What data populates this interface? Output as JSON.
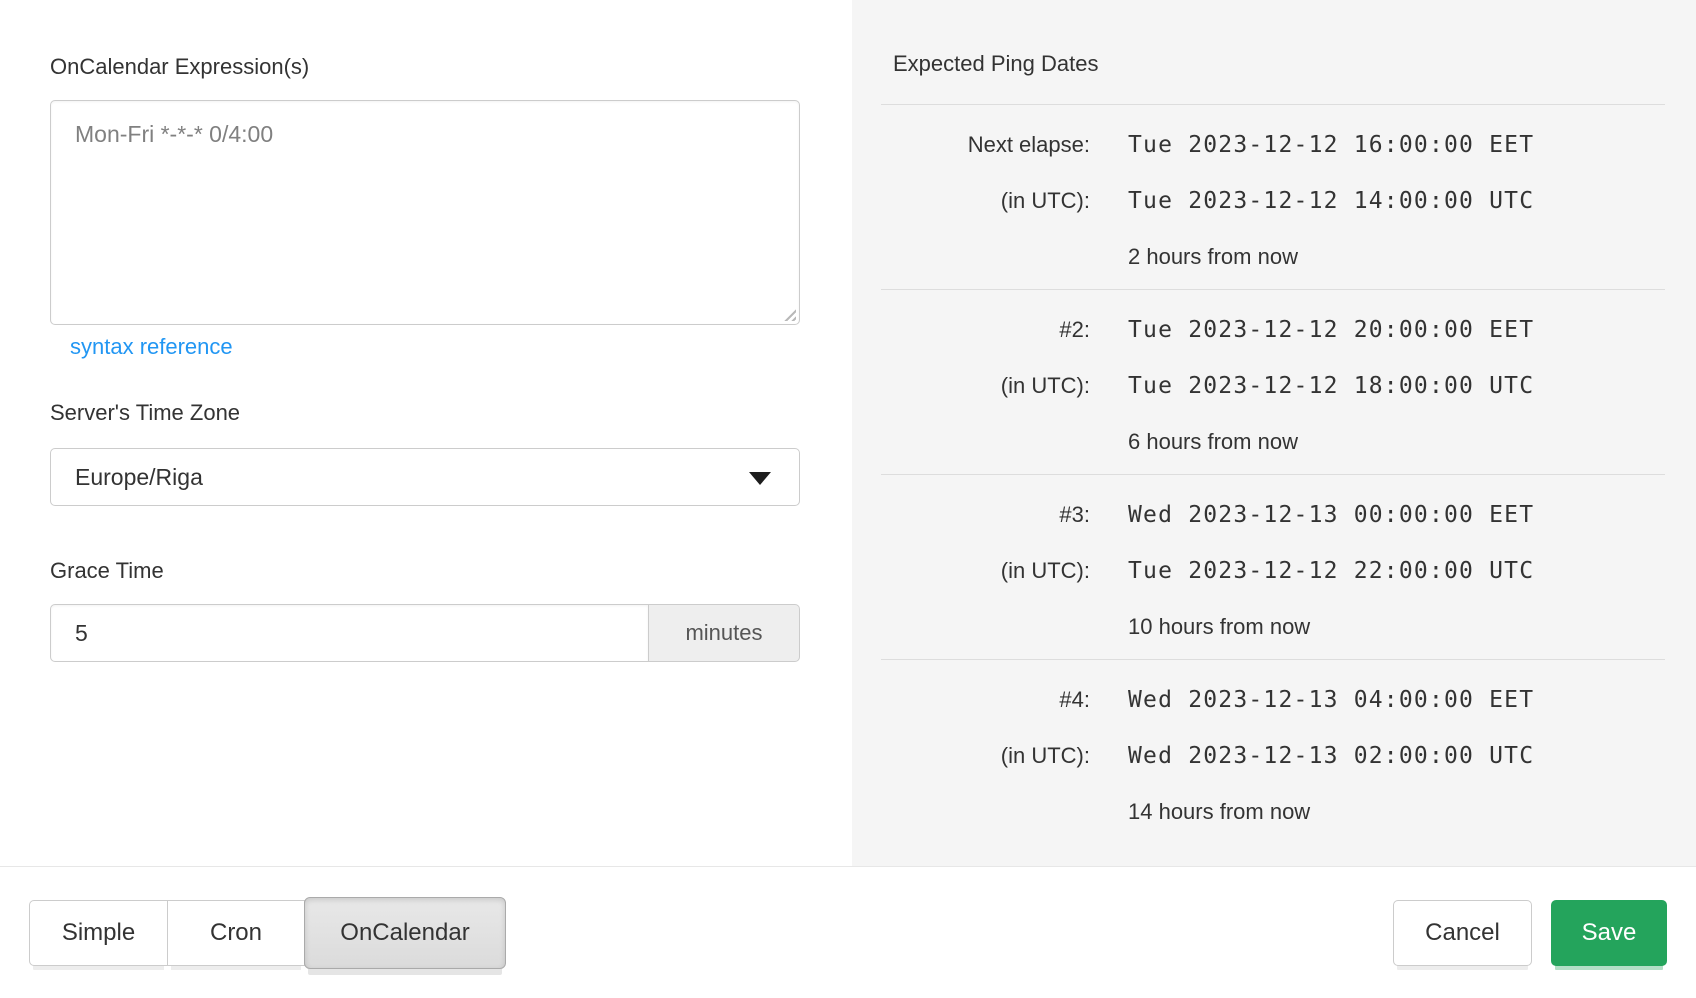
{
  "form": {
    "expression_label": "OnCalendar Expression(s)",
    "expression_value": "Mon-Fri *-*-* 0/4:00",
    "syntax_link_label": "syntax reference",
    "timezone_label": "Server's Time Zone",
    "timezone_value": "Europe/Riga",
    "grace_label": "Grace Time",
    "grace_value": "5",
    "grace_unit": "minutes"
  },
  "expected": {
    "title": "Expected Ping Dates",
    "utc_label": "(in UTC):",
    "rows": [
      {
        "label": "Next elapse:",
        "local": "Tue 2023-12-12 16:00:00 EET",
        "utc": "Tue 2023-12-12 14:00:00 UTC",
        "relative": "2 hours from now"
      },
      {
        "label": "#2:",
        "local": "Tue 2023-12-12 20:00:00 EET",
        "utc": "Tue 2023-12-12 18:00:00 UTC",
        "relative": "6 hours from now"
      },
      {
        "label": "#3:",
        "local": "Wed 2023-12-13 00:00:00 EET",
        "utc": "Tue 2023-12-12 22:00:00 UTC",
        "relative": "10 hours from now"
      },
      {
        "label": "#4:",
        "local": "Wed 2023-12-13 04:00:00 EET",
        "utc": "Wed 2023-12-13 02:00:00 UTC",
        "relative": "14 hours from now"
      }
    ]
  },
  "footer": {
    "modes": [
      {
        "label": "Simple",
        "active": false
      },
      {
        "label": "Cron",
        "active": false
      },
      {
        "label": "OnCalendar",
        "active": true
      }
    ],
    "cancel_label": "Cancel",
    "save_label": "Save"
  },
  "colors": {
    "accent_blue": "#2196f3",
    "save_green": "#24a45c",
    "panel_bg": "#f5f5f5"
  }
}
